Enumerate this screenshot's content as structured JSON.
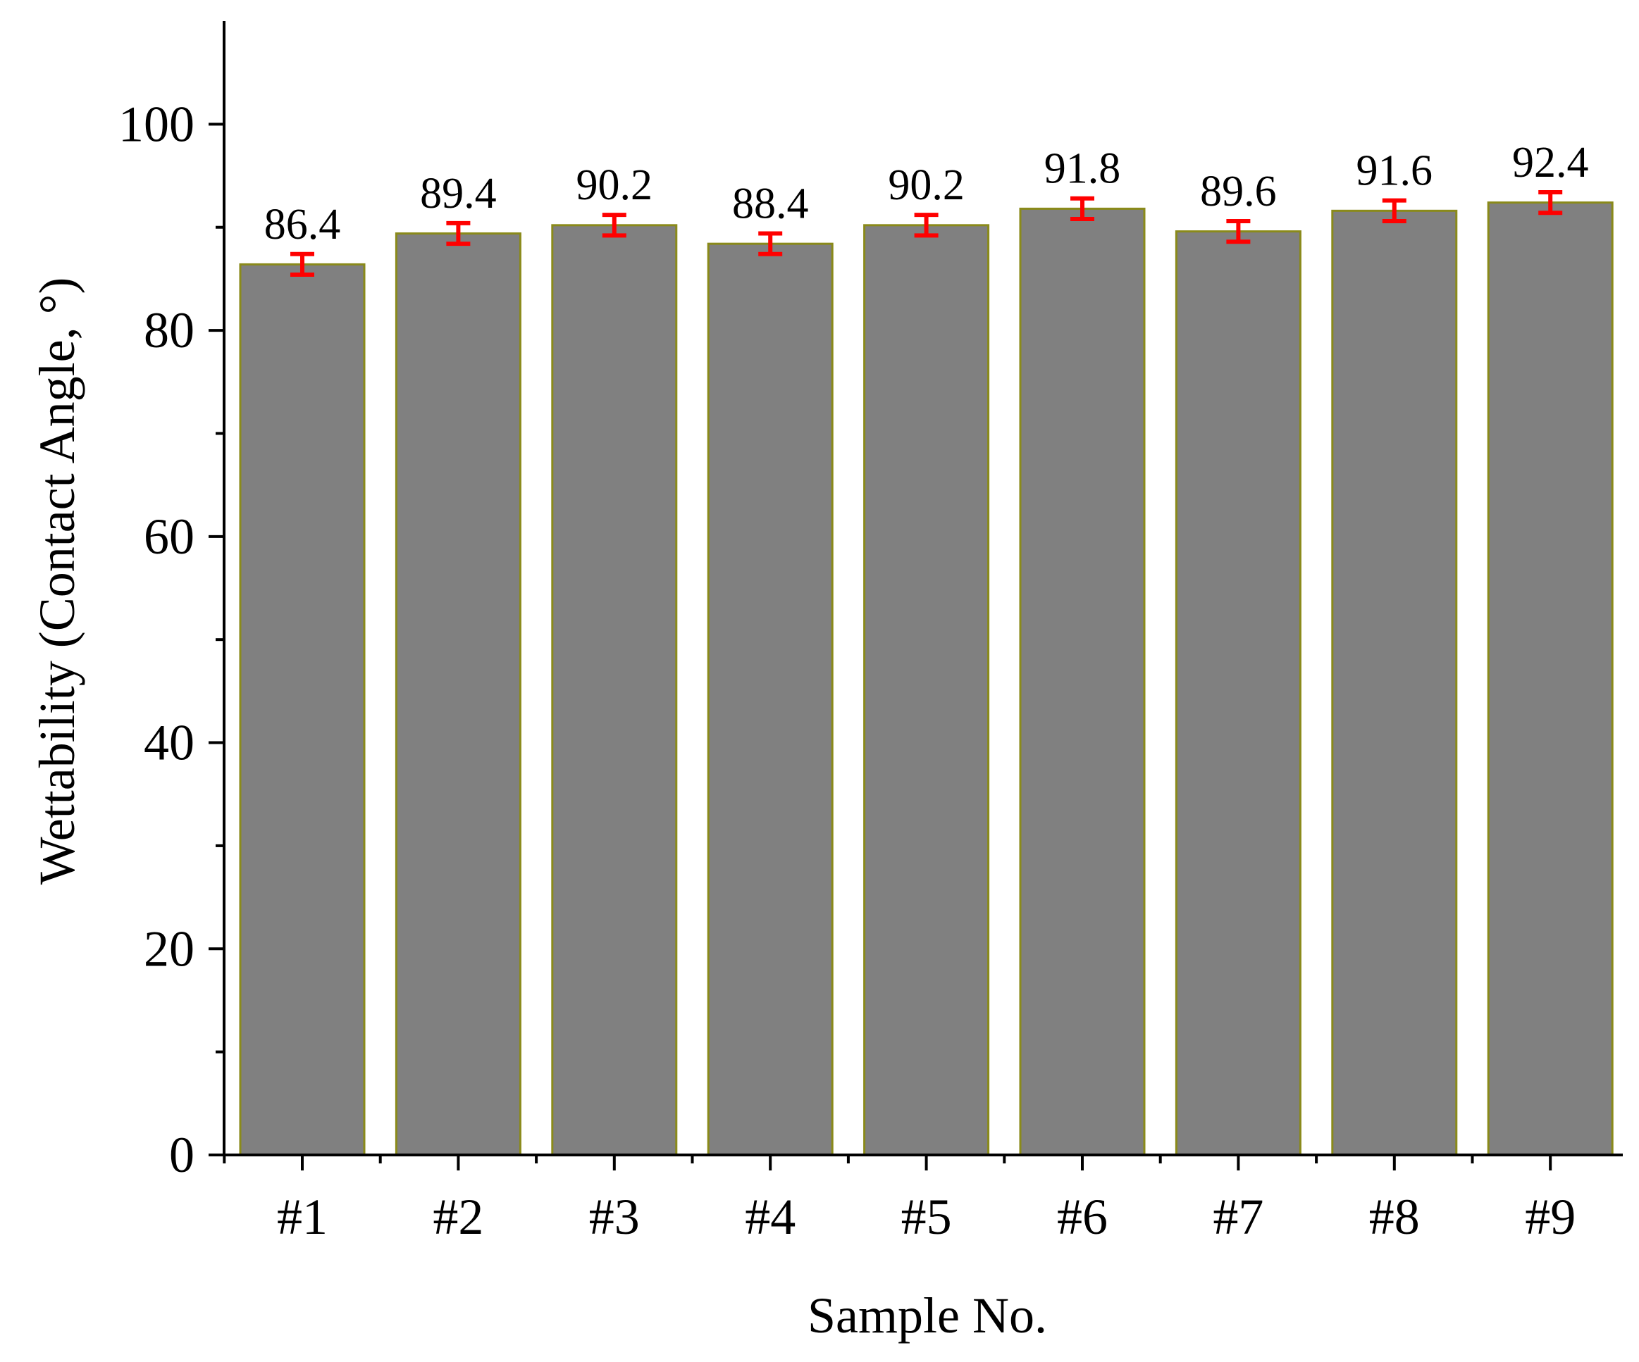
{
  "chart_data": {
    "type": "bar",
    "xlabel": "Sample No.",
    "ylabel": "Wettability (Contact Angle, °)",
    "categories": [
      "#1",
      "#2",
      "#3",
      "#4",
      "#5",
      "#6",
      "#7",
      "#8",
      "#9"
    ],
    "values": [
      86.4,
      89.4,
      90.2,
      88.4,
      90.2,
      91.8,
      89.6,
      91.6,
      92.4
    ],
    "error": [
      1.0,
      1.0,
      1.0,
      1.0,
      1.0,
      1.0,
      1.0,
      1.0,
      1.0
    ],
    "data_labels": [
      "86.4",
      "89.4",
      "90.2",
      "88.4",
      "90.2",
      "91.8",
      "89.6",
      "91.6",
      "92.4"
    ],
    "ylim": [
      0,
      110
    ],
    "yticks": [
      0,
      20,
      40,
      60,
      80,
      100
    ],
    "ytick_labels": [
      "0",
      "20",
      "40",
      "60",
      "80",
      "100"
    ],
    "grid": false,
    "legend": "none",
    "colors": {
      "bar_fill": "#808080",
      "bar_edge": "#8a8a1a",
      "error_bar": "#ff0000",
      "axis": "#000000"
    }
  }
}
